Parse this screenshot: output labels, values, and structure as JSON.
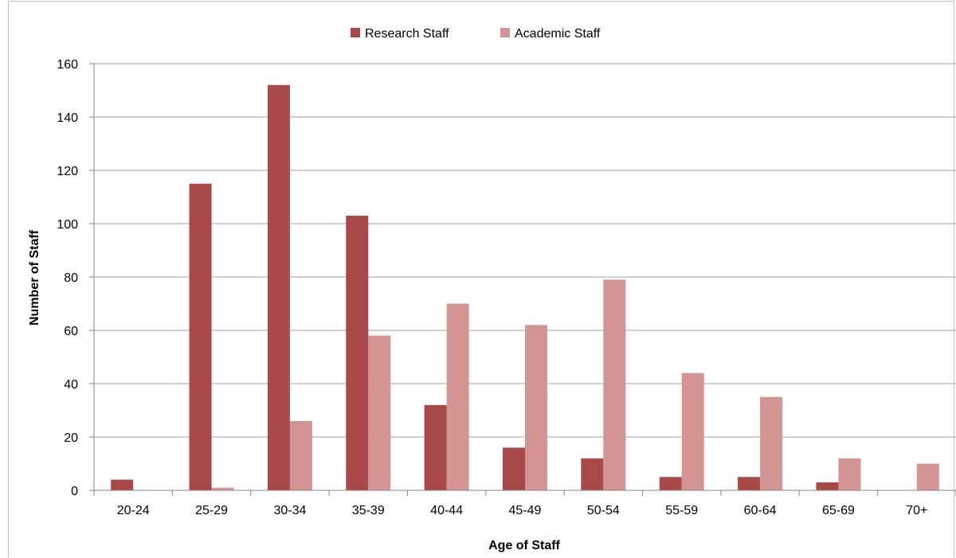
{
  "chart_data": {
    "type": "bar",
    "categories": [
      "20-24",
      "25-29",
      "30-34",
      "35-39",
      "40-44",
      "45-49",
      "50-54",
      "55-59",
      "60-64",
      "65-69",
      "70+"
    ],
    "series": [
      {
        "name": "Research Staff",
        "color": "#a84848",
        "values": [
          4,
          115,
          152,
          103,
          32,
          16,
          12,
          5,
          5,
          3,
          0
        ]
      },
      {
        "name": "Academic Staff",
        "color": "#d49494",
        "values": [
          0,
          1,
          26,
          58,
          70,
          62,
          79,
          44,
          35,
          12,
          10
        ]
      }
    ],
    "title": "",
    "xlabel": "Age of Staff",
    "ylabel": "Number of Staff",
    "ylim": [
      0,
      160
    ],
    "yticks": [
      0,
      20,
      40,
      60,
      80,
      100,
      120,
      140,
      160
    ],
    "grid": true,
    "legend_position": "top-center",
    "gridline_color": "#a0a0a0"
  }
}
